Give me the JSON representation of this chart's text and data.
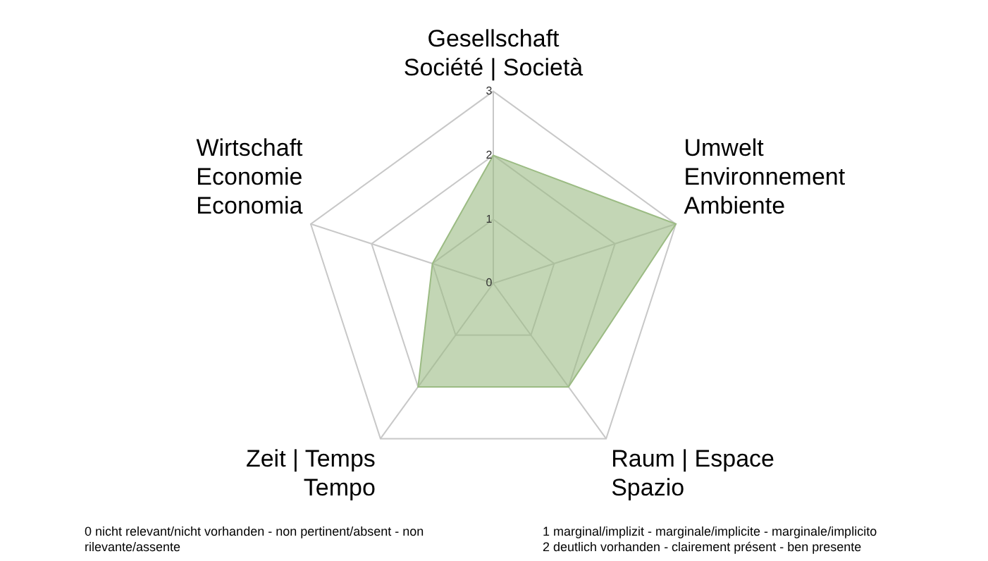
{
  "chart_data": {
    "type": "radar",
    "categories": [
      "Gesellschaft\nSociété | Società",
      "Umwelt\nEnvironnement\nAmbiente",
      "Raum | Espace\nSpazio",
      "Zeit | Temps\nTempo",
      "Wirtschaft\nEconomie\nEconomia"
    ],
    "series": [
      {
        "color": "#9bbb83",
        "values": [
          2,
          3,
          2,
          2,
          1
        ]
      }
    ],
    "ylim": [
      0,
      3
    ],
    "yticks": [
      0,
      1,
      2,
      3
    ],
    "grid": true,
    "legend": false,
    "marker": "none",
    "annotations": [
      "0 nicht relevant/nicht vorhanden  - non pertinent/absent - non rilevante/assente",
      "1 marginal/implizit - marginale/implicite - marginale/implicito\n2 deutlich vorhanden  - clairement présent - ben presente"
    ]
  }
}
